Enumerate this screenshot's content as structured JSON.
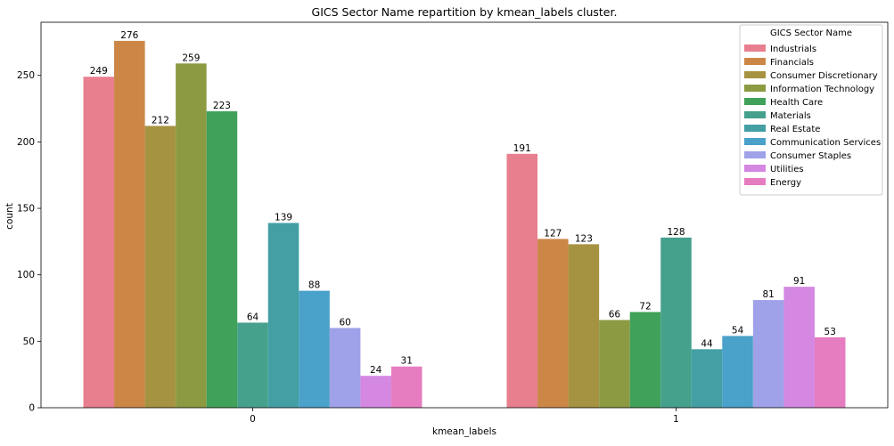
{
  "chart_data": {
    "type": "bar",
    "title": "GICS Sector Name repartition by kmean_labels cluster.",
    "xlabel": "kmean_labels",
    "ylabel": "count",
    "categories": [
      "0",
      "1"
    ],
    "ylim": [
      0,
      290
    ],
    "yticks": [
      0,
      50,
      100,
      150,
      200,
      250
    ],
    "grid": false,
    "legend": {
      "title": "GICS Sector Name",
      "placement": "top-right"
    },
    "series": [
      {
        "name": "Industrials",
        "color": "#e87f8f",
        "values": [
          249,
          191
        ]
      },
      {
        "name": "Financials",
        "color": "#cc8747",
        "values": [
          276,
          127
        ]
      },
      {
        "name": "Consumer Discretionary",
        "color": "#a69341",
        "values": [
          212,
          123
        ]
      },
      {
        "name": "Information Technology",
        "color": "#8c9b42",
        "values": [
          259,
          66
        ]
      },
      {
        "name": "Health Care",
        "color": "#40a15a",
        "values": [
          223,
          72
        ]
      },
      {
        "name": "Materials",
        "color": "#45a08c",
        "values": [
          64,
          128
        ]
      },
      {
        "name": "Real Estate",
        "color": "#439fa4",
        "values": [
          139,
          44
        ]
      },
      {
        "name": "Communication Services",
        "color": "#4aa1c9",
        "values": [
          88,
          54
        ]
      },
      {
        "name": "Consumer Staples",
        "color": "#9fa2e8",
        "values": [
          60,
          81
        ]
      },
      {
        "name": "Utilities",
        "color": "#d488e2",
        "values": [
          24,
          91
        ]
      },
      {
        "name": "Energy",
        "color": "#e57dc0",
        "values": [
          31,
          53
        ]
      }
    ]
  }
}
